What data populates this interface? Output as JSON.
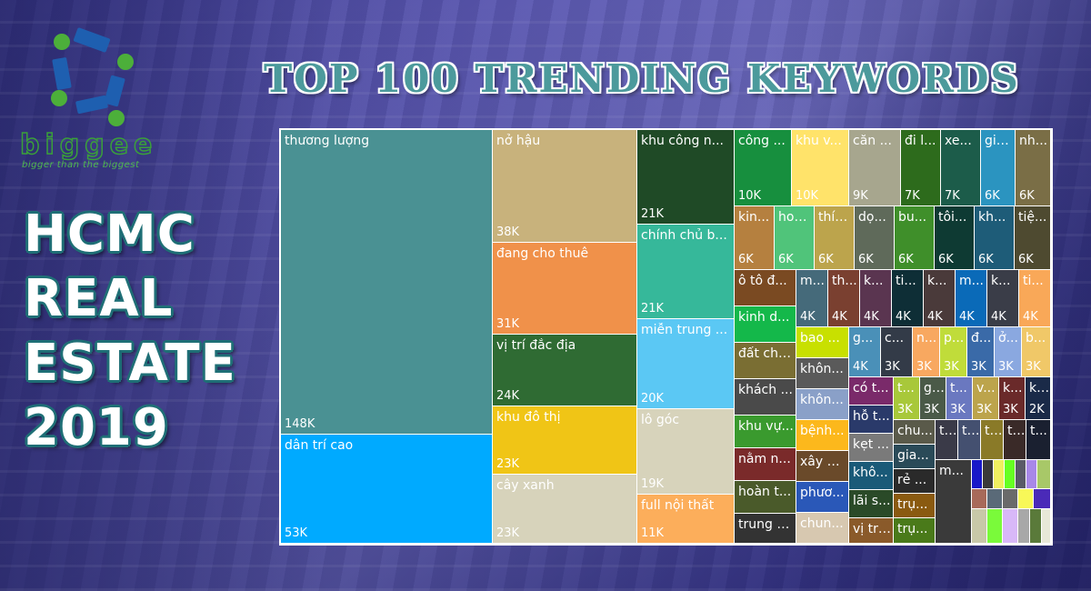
{
  "brand": {
    "name": "biggee",
    "tagline": "bigger than the biggest"
  },
  "side_title": {
    "lines": [
      "HCMC",
      "REAL",
      "ESTATE",
      "2019"
    ]
  },
  "chart_data": {
    "type": "treemap",
    "title": "TOP 100 TRENDING KEYWORDS",
    "items": [
      {
        "label": "thương lượng",
        "value": 148000,
        "value_label": "148K",
        "color": "#4a9193"
      },
      {
        "label": "dân trí cao",
        "value": 53000,
        "value_label": "53K",
        "color": "#00aaff"
      },
      {
        "label": "nở hậu",
        "value": 38000,
        "value_label": "38K",
        "color": "#c8b27c"
      },
      {
        "label": "đang cho thuê",
        "value": 31000,
        "value_label": "31K",
        "color": "#f0914a"
      },
      {
        "label": "vị trí đắc địa",
        "value": 24000,
        "value_label": "24K",
        "color": "#2f6b33"
      },
      {
        "label": "khu đô thị",
        "value": 23000,
        "value_label": "23K",
        "color": "#f0c516"
      },
      {
        "label": "cây xanh",
        "value": 23000,
        "value_label": "23K",
        "color": "#d7d3bb"
      },
      {
        "label": "khu công n...",
        "value": 21000,
        "value_label": "21K",
        "color": "#1f4a26"
      },
      {
        "label": "chính chủ b...",
        "value": 21000,
        "value_label": "21K",
        "color": "#36b89a"
      },
      {
        "label": "miễn trung ...",
        "value": 20000,
        "value_label": "20K",
        "color": "#5bc8f4"
      },
      {
        "label": "lô góc",
        "value": 19000,
        "value_label": "19K",
        "color": "#d7d3bb"
      },
      {
        "label": "full nội thất",
        "value": 11000,
        "value_label": "11K",
        "color": "#fcae5b"
      },
      {
        "label": "công ...",
        "value": 10000,
        "value_label": "10K",
        "color": "#178f3e"
      },
      {
        "label": "khu v...",
        "value": 10000,
        "value_label": "10K",
        "color": "#ffe36a"
      },
      {
        "label": "căn ...",
        "value": 9000,
        "value_label": "9K",
        "color": "#a7a68e"
      },
      {
        "label": "đi l...",
        "value": 7000,
        "value_label": "7K",
        "color": "#2d6b1c"
      },
      {
        "label": "xe...",
        "value": 7000,
        "value_label": "7K",
        "color": "#1c5c4a"
      },
      {
        "label": "gia...",
        "value": 6000,
        "value_label": "6K",
        "color": "#2b94c0"
      },
      {
        "label": "nh...",
        "value": 6000,
        "value_label": "6K",
        "color": "#7a6e46"
      },
      {
        "label": "kin...",
        "value": 6000,
        "value_label": "6K",
        "color": "#b5803f"
      },
      {
        "label": "hoà...",
        "value": 6000,
        "value_label": "6K",
        "color": "#50c47a"
      },
      {
        "label": "thíc...",
        "value": 6000,
        "value_label": "6K",
        "color": "#bca44c"
      },
      {
        "label": "dọ...",
        "value": 6000,
        "value_label": "6K",
        "color": "#5f6a5a"
      },
      {
        "label": "bu...",
        "value": 6000,
        "value_label": "6K",
        "color": "#3f8f2a"
      },
      {
        "label": "tôi...",
        "value": 6000,
        "value_label": "6K",
        "color": "#0e3a33"
      },
      {
        "label": "kh...",
        "value": 6000,
        "value_label": "6K",
        "color": "#1e5c78"
      },
      {
        "label": "tiệ...",
        "value": 6000,
        "value_label": "6K",
        "color": "#4e4a30"
      },
      {
        "label": "ô tô đ...",
        "value": 5000,
        "value_label": "",
        "color": "#7a4a22"
      },
      {
        "label": "kinh d...",
        "value": 5000,
        "value_label": "",
        "color": "#14b84a"
      },
      {
        "label": "đất chí...",
        "value": 5000,
        "value_label": "",
        "color": "#7a6e33"
      },
      {
        "label": "khách ...",
        "value": 5000,
        "value_label": "",
        "color": "#4a4a4a"
      },
      {
        "label": "khu vự...",
        "value": 4500,
        "value_label": "",
        "color": "#3a9a2e"
      },
      {
        "label": "nằm n...",
        "value": 4500,
        "value_label": "",
        "color": "#7a2a2a"
      },
      {
        "label": "hoàn t...",
        "value": 4500,
        "value_label": "",
        "color": "#4a5a2a"
      },
      {
        "label": "trung t...",
        "value": 4500,
        "value_label": "",
        "color": "#333333"
      },
      {
        "label": "m...",
        "value": 4000,
        "value_label": "4K",
        "color": "#456a7a"
      },
      {
        "label": "th...",
        "value": 4000,
        "value_label": "4K",
        "color": "#7a4030"
      },
      {
        "label": "k...",
        "value": 4000,
        "value_label": "4K",
        "color": "#5a3550"
      },
      {
        "label": "ti...",
        "value": 4000,
        "value_label": "4K",
        "color": "#0e2e36"
      },
      {
        "label": "k...",
        "value": 4000,
        "value_label": "4K",
        "color": "#4a3a3a"
      },
      {
        "label": "m...",
        "value": 4000,
        "value_label": "4K",
        "color": "#0a6ab8"
      },
      {
        "label": "k...",
        "value": 4000,
        "value_label": "4K",
        "color": "#3a3d48"
      },
      {
        "label": "ti...",
        "value": 4000,
        "value_label": "4K",
        "color": "#f9a858"
      },
      {
        "label": "bao ...",
        "value": 3800,
        "value_label": "",
        "color": "#c8e000"
      },
      {
        "label": "khôn...",
        "value": 3800,
        "value_label": "",
        "color": "#5a5a5a"
      },
      {
        "label": "khôn...",
        "value": 3800,
        "value_label": "",
        "color": "#8aa0c8"
      },
      {
        "label": "bệnh...",
        "value": 3800,
        "value_label": "",
        "color": "#fcb81c"
      },
      {
        "label": "xây d...",
        "value": 3800,
        "value_label": "",
        "color": "#6a4a2a"
      },
      {
        "label": "phươ...",
        "value": 3800,
        "value_label": "",
        "color": "#2a58b8"
      },
      {
        "label": "chun...",
        "value": 3800,
        "value_label": "",
        "color": "#d7c8b0"
      },
      {
        "label": "g...",
        "value": 3500,
        "value_label": "4K",
        "color": "#4a90b8"
      },
      {
        "label": "c...",
        "value": 3500,
        "value_label": "3K",
        "color": "#333b48"
      },
      {
        "label": "n...",
        "value": 3000,
        "value_label": "3K",
        "color": "#f8a860"
      },
      {
        "label": "p...",
        "value": 3000,
        "value_label": "3K",
        "color": "#c0dc3a"
      },
      {
        "label": "đ...",
        "value": 3000,
        "value_label": "3K",
        "color": "#3a6aa8"
      },
      {
        "label": "ở...",
        "value": 3000,
        "value_label": "3K",
        "color": "#8aa8e0"
      },
      {
        "label": "b...",
        "value": 3000,
        "value_label": "3K",
        "color": "#f0c868"
      },
      {
        "label": "có t...",
        "value": 3000,
        "value_label": "",
        "color": "#7a2a6a"
      },
      {
        "label": "hỗ t...",
        "value": 3000,
        "value_label": "",
        "color": "#2a3a6a"
      },
      {
        "label": "kẹt ...",
        "value": 3000,
        "value_label": "",
        "color": "#7a7a7a"
      },
      {
        "label": "khô...",
        "value": 3000,
        "value_label": "",
        "color": "#1a5a78"
      },
      {
        "label": "lãi s...",
        "value": 3000,
        "value_label": "",
        "color": "#2a4a28"
      },
      {
        "label": "vị trí...",
        "value": 3000,
        "value_label": "",
        "color": "#8a5a2a"
      },
      {
        "label": "t...",
        "value": 2800,
        "value_label": "3K",
        "color": "#a8c83a"
      },
      {
        "label": "g...",
        "value": 2800,
        "value_label": "3K",
        "color": "#4a5a48"
      },
      {
        "label": "t...",
        "value": 2800,
        "value_label": "3K",
        "color": "#6a78c0"
      },
      {
        "label": "v...",
        "value": 2800,
        "value_label": "3K",
        "color": "#bca44c"
      },
      {
        "label": "k...",
        "value": 2800,
        "value_label": "3K",
        "color": "#6a2a2a"
      },
      {
        "label": "k...",
        "value": 2500,
        "value_label": "2K",
        "color": "#1a2a48"
      },
      {
        "label": "chu...",
        "value": 2500,
        "value_label": "",
        "color": "#5a5a4a"
      },
      {
        "label": "gia...",
        "value": 2500,
        "value_label": "",
        "color": "#2a4a58"
      },
      {
        "label": "rẻ ...",
        "value": 2500,
        "value_label": "",
        "color": "#2a2a2a"
      },
      {
        "label": "trụ...",
        "value": 2500,
        "value_label": "",
        "color": "#8a5a10"
      },
      {
        "label": "trụ...",
        "value": 2500,
        "value_label": "",
        "color": "#4a7a1a"
      },
      {
        "label": "t...",
        "value": 2300,
        "value_label": "",
        "color": "#3a3a48"
      },
      {
        "label": "t...",
        "value": 2300,
        "value_label": "",
        "color": "#445070"
      },
      {
        "label": "t...",
        "value": 2300,
        "value_label": "",
        "color": "#8a7a28"
      },
      {
        "label": "t...",
        "value": 2300,
        "value_label": "",
        "color": "#3a2a28"
      },
      {
        "label": "t...",
        "value": 2300,
        "value_label": "",
        "color": "#1a2030"
      },
      {
        "label": "m...",
        "value": 2200,
        "value_label": "",
        "color": "#3a3a3a"
      },
      {
        "label": "",
        "value": 1500,
        "value_label": "",
        "color": "#1818c8"
      },
      {
        "label": "",
        "value": 1500,
        "value_label": "",
        "color": "#3a3a3a"
      },
      {
        "label": "",
        "value": 1500,
        "value_label": "",
        "color": "#f0f060"
      },
      {
        "label": "",
        "value": 1500,
        "value_label": "",
        "color": "#66ff22"
      },
      {
        "label": "",
        "value": 1500,
        "value_label": "",
        "color": "#5a5a68"
      },
      {
        "label": "",
        "value": 1500,
        "value_label": "",
        "color": "#a888e8"
      },
      {
        "label": "",
        "value": 1500,
        "value_label": "",
        "color": "#a8c868"
      },
      {
        "label": "",
        "value": 1200,
        "value_label": "",
        "color": "#a86a5a"
      },
      {
        "label": "",
        "value": 1200,
        "value_label": "",
        "color": "#5a6a78"
      },
      {
        "label": "",
        "value": 1200,
        "value_label": "",
        "color": "#6a6a6a"
      },
      {
        "label": "",
        "value": 1200,
        "value_label": "",
        "color": "#f8f858"
      },
      {
        "label": "",
        "value": 1200,
        "value_label": "",
        "color": "#4a2ab8"
      },
      {
        "label": "",
        "value": 1000,
        "value_label": "",
        "color": "#c8c8a8"
      },
      {
        "label": "",
        "value": 1000,
        "value_label": "",
        "color": "#7afa3a"
      },
      {
        "label": "",
        "value": 1000,
        "value_label": "",
        "color": "#d8b8f8"
      },
      {
        "label": "",
        "value": 800,
        "value_label": "",
        "color": "#a8a8a8"
      },
      {
        "label": "",
        "value": 800,
        "value_label": "",
        "color": "#5a7a3a"
      },
      {
        "label": "",
        "value": 600,
        "value_label": "",
        "color": "#e8e8d8"
      }
    ]
  }
}
